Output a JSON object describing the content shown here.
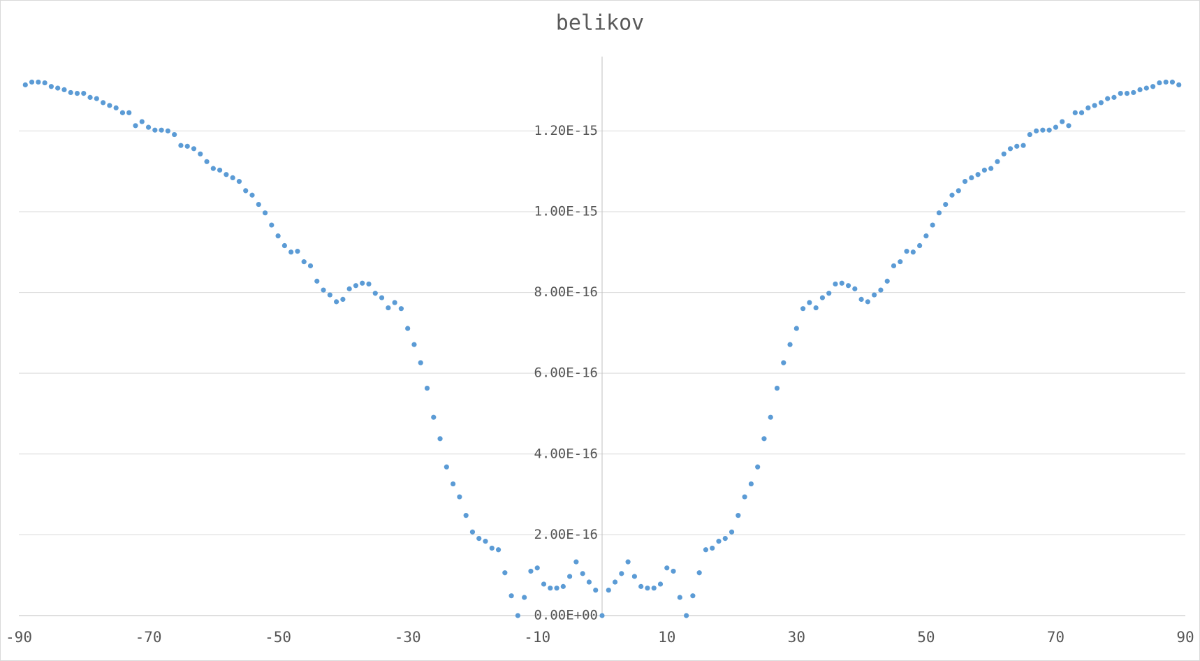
{
  "chart_data": {
    "type": "scatter",
    "title": "belikov",
    "x": [
      -89,
      -88,
      -87,
      -86,
      -85,
      -84,
      -83,
      -82,
      -81,
      -80,
      -79,
      -78,
      -77,
      -76,
      -75,
      -74,
      -73,
      -72,
      -71,
      -70,
      -69,
      -68,
      -67,
      -66,
      -65,
      -64,
      -63,
      -62,
      -61,
      -60,
      -59,
      -58,
      -57,
      -56,
      -55,
      -54,
      -53,
      -52,
      -51,
      -50,
      -49,
      -48,
      -47,
      -46,
      -45,
      -44,
      -43,
      -42,
      -41,
      -40,
      -39,
      -38,
      -37,
      -36,
      -35,
      -34,
      -33,
      -32,
      -31,
      -30,
      -29,
      -28,
      -27,
      -26,
      -25,
      -24,
      -23,
      -22,
      -21,
      -20,
      -19,
      -18,
      -17,
      -16,
      -15,
      -14,
      -13,
      -12,
      -11,
      -10,
      -9,
      -8,
      -7,
      -6,
      -5,
      -4,
      -3,
      -2,
      -1,
      0,
      1,
      2,
      3,
      4,
      5,
      6,
      7,
      8,
      9,
      10,
      11,
      12,
      13,
      14,
      15,
      16,
      17,
      18,
      19,
      20,
      21,
      22,
      23,
      24,
      25,
      26,
      27,
      28,
      29,
      30,
      31,
      32,
      33,
      34,
      35,
      36,
      37,
      38,
      39,
      40,
      41,
      42,
      43,
      44,
      45,
      46,
      47,
      48,
      49,
      50,
      51,
      52,
      53,
      54,
      55,
      56,
      57,
      58,
      59,
      60,
      61,
      62,
      63,
      64,
      65,
      66,
      67,
      68,
      69,
      70,
      71,
      72,
      73,
      74,
      75,
      76,
      77,
      78,
      79,
      80,
      81,
      82,
      83,
      84,
      85,
      86,
      87,
      88,
      89
    ],
    "values": [
      1.314e-15,
      1.321e-15,
      1.321e-15,
      1.319e-15,
      1.31e-15,
      1.306e-15,
      1.302e-15,
      1.295e-15,
      1.293e-15,
      1.293e-15,
      1.283e-15,
      1.28e-15,
      1.27e-15,
      1.263e-15,
      1.257e-15,
      1.245e-15,
      1.245e-15,
      1.213e-15,
      1.223e-15,
      1.209e-15,
      1.202e-15,
      1.202e-15,
      1.2e-15,
      1.191e-15,
      1.164e-15,
      1.162e-15,
      1.156e-15,
      1.143e-15,
      1.124e-15,
      1.107e-15,
      1.103e-15,
      1.092e-15,
      1.084e-15,
      1.075e-15,
      1.052e-15,
      1.041e-15,
      1.018e-15,
      9.97e-16,
      9.67e-16,
      9.4e-16,
      9.16e-16,
      9e-16,
      9.02e-16,
      8.76e-16,
      8.66e-16,
      8.28e-16,
      8.06e-16,
      7.94e-16,
      7.77e-16,
      7.83e-16,
      8.09e-16,
      8.17e-16,
      8.23e-16,
      8.21e-16,
      7.98e-16,
      7.87e-16,
      7.62e-16,
      7.75e-16,
      7.6e-16,
      7.11e-16,
      6.71e-16,
      6.26e-16,
      5.63e-16,
      4.91e-16,
      4.38e-16,
      3.68e-16,
      3.26e-16,
      2.94e-16,
      2.48e-16,
      2.07e-16,
      1.91e-16,
      1.84e-16,
      1.67e-16,
      1.63e-16,
      1.06e-16,
      4.9e-17,
      0,
      4.5e-17,
      1.1e-16,
      1.18e-16,
      7.8e-17,
      6.8e-17,
      6.8e-17,
      7.2e-17,
      9.7e-17,
      1.33e-16,
      1.04e-16,
      8.3e-17,
      6.3e-17,
      0,
      6.3e-17,
      8.3e-17,
      1.04e-16,
      1.33e-16,
      9.7e-17,
      7.2e-17,
      6.8e-17,
      6.8e-17,
      7.8e-17,
      1.18e-16,
      1.1e-16,
      4.5e-17,
      0,
      4.9e-17,
      1.06e-16,
      1.63e-16,
      1.67e-16,
      1.84e-16,
      1.91e-16,
      2.07e-16,
      2.48e-16,
      2.94e-16,
      3.26e-16,
      3.68e-16,
      4.38e-16,
      4.91e-16,
      5.63e-16,
      6.26e-16,
      6.71e-16,
      7.11e-16,
      7.6e-16,
      7.75e-16,
      7.62e-16,
      7.87e-16,
      7.98e-16,
      8.21e-16,
      8.23e-16,
      8.17e-16,
      8.09e-16,
      7.83e-16,
      7.77e-16,
      7.94e-16,
      8.06e-16,
      8.28e-16,
      8.66e-16,
      8.76e-16,
      9.02e-16,
      9e-16,
      9.16e-16,
      9.4e-16,
      9.67e-16,
      9.97e-16,
      1.018e-15,
      1.041e-15,
      1.052e-15,
      1.075e-15,
      1.084e-15,
      1.092e-15,
      1.103e-15,
      1.107e-15,
      1.124e-15,
      1.143e-15,
      1.156e-15,
      1.162e-15,
      1.164e-15,
      1.191e-15,
      1.2e-15,
      1.202e-15,
      1.202e-15,
      1.209e-15,
      1.223e-15,
      1.213e-15,
      1.245e-15,
      1.245e-15,
      1.257e-15,
      1.263e-15,
      1.27e-15,
      1.28e-15,
      1.283e-15,
      1.293e-15,
      1.293e-15,
      1.295e-15,
      1.302e-15,
      1.306e-15,
      1.31e-15,
      1.319e-15,
      1.321e-15,
      1.321e-15,
      1.314e-15
    ],
    "color": "#5b9bd5",
    "xlim": [
      -90,
      90
    ],
    "xticks": [
      -90,
      -70,
      -50,
      -30,
      -10,
      10,
      30,
      50,
      70,
      90
    ],
    "ylim": [
      0,
      1.384e-15
    ],
    "yticks": [
      {
        "value": 0,
        "label": "0.00E+00"
      },
      {
        "value": 2e-16,
        "label": "2.00E-16"
      },
      {
        "value": 4e-16,
        "label": "4.00E-16"
      },
      {
        "value": 6e-16,
        "label": "6.00E-16"
      },
      {
        "value": 8e-16,
        "label": "8.00E-16"
      },
      {
        "value": 1e-15,
        "label": "1.00E-15"
      },
      {
        "value": 1.2e-15,
        "label": "1.20E-15"
      }
    ],
    "grid": true
  }
}
